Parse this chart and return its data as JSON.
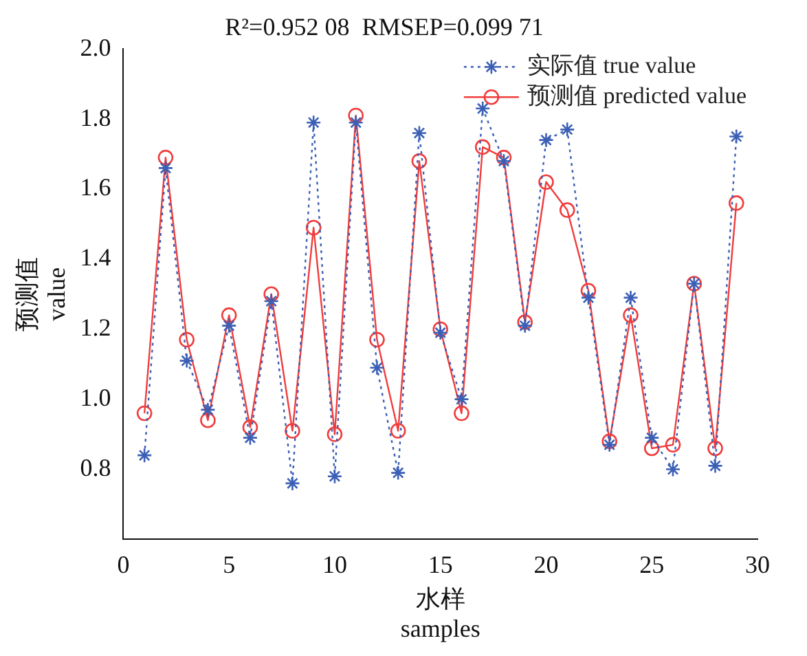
{
  "chart_data": {
    "type": "line",
    "title": "R²=0.952 08  RMSEP=0.099 71",
    "xlabel": "水样\nsamples",
    "ylabel": "预测值\nvalue",
    "x": [
      1,
      2,
      3,
      4,
      5,
      6,
      7,
      8,
      9,
      10,
      11,
      12,
      13,
      14,
      15,
      16,
      17,
      18,
      19,
      20,
      21,
      22,
      23,
      24,
      25,
      26,
      27,
      28,
      29
    ],
    "series": [
      {
        "name": "实际值 true value",
        "color": "#3b5fb5",
        "marker": "cross",
        "line_style": "dotted",
        "values": [
          0.84,
          1.66,
          1.11,
          0.97,
          1.21,
          0.89,
          1.28,
          0.76,
          1.79,
          0.78,
          1.79,
          1.09,
          0.79,
          1.76,
          1.19,
          1.0,
          1.83,
          1.68,
          1.21,
          1.74,
          1.77,
          1.29,
          0.87,
          1.29,
          0.89,
          0.8,
          1.33,
          0.81,
          1.75
        ]
      },
      {
        "name": "预测值 predicted value",
        "color": "#f03c3c",
        "marker": "circle",
        "line_style": "solid",
        "values": [
          0.96,
          1.69,
          1.17,
          0.94,
          1.24,
          0.92,
          1.3,
          0.91,
          1.49,
          0.9,
          1.81,
          1.17,
          0.91,
          1.68,
          1.2,
          0.96,
          1.72,
          1.69,
          1.22,
          1.62,
          1.54,
          1.31,
          0.88,
          1.24,
          0.86,
          0.87,
          1.33,
          0.86,
          1.56
        ]
      }
    ],
    "xlim": [
      0,
      30
    ],
    "xticks": [
      0,
      5,
      10,
      15,
      20,
      25,
      30
    ],
    "ylim": [
      0.6,
      2.0
    ],
    "yticks": [
      {
        "value": 0.8,
        "label": "0.8"
      },
      {
        "value": 1.0,
        "label": "1.0"
      },
      {
        "value": 1.2,
        "label": "1.2"
      },
      {
        "value": 1.4,
        "label": "1.4"
      },
      {
        "value": 1.6,
        "label": "1.6"
      },
      {
        "value": 1.8,
        "label": "1.8"
      },
      {
        "value": 2.0,
        "label": "2.0"
      }
    ],
    "grid": false,
    "legend": "top right"
  }
}
